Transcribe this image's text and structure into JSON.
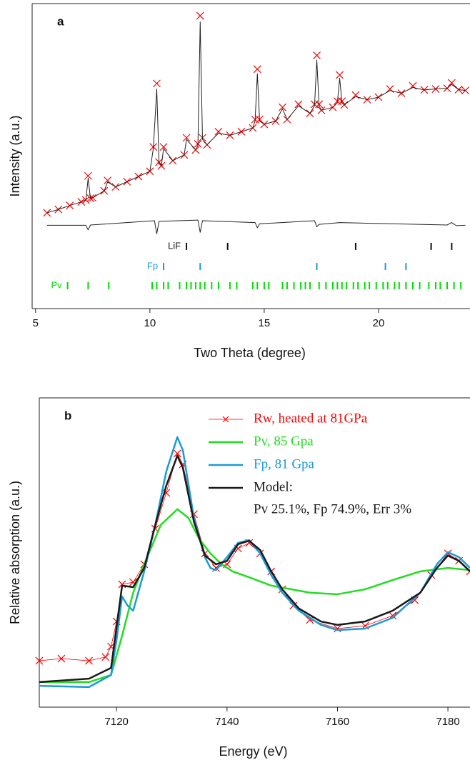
{
  "chart_data": [
    {
      "type": "line",
      "panel_label": "a",
      "x_label": "Two Theta (degree)",
      "y_label": "Intensity (a.u.)",
      "xlim": [
        4.85,
        24
      ],
      "xticks": [
        5,
        10,
        15,
        20
      ],
      "ylim": [
        0,
        100
      ],
      "x": [
        5.5,
        6,
        6.5,
        7,
        7.2,
        7.3,
        7.4,
        7.5,
        8,
        8.15,
        8.5,
        9,
        9.5,
        10,
        10.15,
        10.3,
        10.4,
        10.5,
        10.6,
        11,
        11.5,
        11.6,
        12,
        12.1,
        12.2,
        12.3,
        12.5,
        13,
        13.5,
        14,
        14.5,
        14.6,
        14.7,
        14.8,
        15,
        15.5,
        15.8,
        16,
        16.5,
        17,
        17.2,
        17.3,
        17.4,
        17.5,
        18,
        18.2,
        18.3,
        18.4,
        18.5,
        19,
        19.5,
        20,
        20.5,
        21,
        21.5,
        22,
        22.5,
        23,
        23.2,
        23.5,
        23.8
      ],
      "series": [
        {
          "color": "#ff0000",
          "marker": "x",
          "values": [
            31.4,
            32.5,
            33.8,
            35.0,
            35.6,
            43.5,
            36.2,
            36.3,
            38.6,
            42,
            39.9,
            41.6,
            43.3,
            45.0,
            53,
            73.8,
            48,
            46.8,
            53,
            48.5,
            50.4,
            56,
            52.0,
            54,
            96,
            56,
            53.7,
            58,
            56.8,
            58.0,
            59.2,
            62,
            78.5,
            62,
            60.4,
            61.5,
            66,
            62.0,
            67,
            64.0,
            67,
            83,
            67,
            65.0,
            66.0,
            68,
            76.6,
            68,
            66.8,
            70,
            68.5,
            69.3,
            72,
            70.6,
            73,
            71.7,
            72.0,
            72.2,
            74,
            71.8,
            71.5
          ]
        },
        {
          "color": "#222222",
          "values": [
            31.4,
            32.5,
            33.8,
            35.0,
            35.6,
            42.8,
            36.2,
            36.3,
            38.6,
            41.5,
            39.9,
            41.6,
            43.3,
            45.0,
            52.5,
            72,
            48,
            46.8,
            52.5,
            48.5,
            50.4,
            55.5,
            52.0,
            53.5,
            94,
            55.5,
            53.7,
            57.5,
            56.8,
            58.0,
            59.2,
            61.5,
            77,
            61.5,
            60.4,
            61.5,
            65.5,
            62.0,
            66.5,
            64.0,
            66.5,
            81.5,
            66.5,
            65.0,
            66.0,
            67.5,
            75.5,
            67.5,
            66.8,
            69.5,
            68.5,
            69.3,
            71.5,
            70.6,
            72.5,
            71.7,
            72.0,
            72.2,
            73.5,
            71.8,
            71.5
          ]
        },
        {
          "color": "#222222",
          "x": [
            5.5,
            7.2,
            7.3,
            7.4,
            10.2,
            10.3,
            10.4,
            12.1,
            12.2,
            12.3,
            14.6,
            14.7,
            14.8,
            17.2,
            17.3,
            17.4,
            18.3,
            23.0,
            23.2,
            23.4,
            23.8
          ],
          "values": [
            27.3,
            27.3,
            25.8,
            27.4,
            28.8,
            24.5,
            28.6,
            29.0,
            25.0,
            28.8,
            28.2,
            26.5,
            27.8,
            28.8,
            26.8,
            27.6,
            28.2,
            27.4,
            28.2,
            27.2,
            27.3
          ]
        }
      ],
      "reflections": [
        {
          "name": "LiF",
          "color": "#111111",
          "y": 20.4,
          "positions": [
            11.6,
            13.4,
            19.0,
            22.3,
            23.2
          ]
        },
        {
          "name": "Fp",
          "color": "#1a9bd7",
          "y": 13.8,
          "positions": [
            10.6,
            12.2,
            17.3,
            20.3,
            21.2
          ]
        },
        {
          "name": "Pv",
          "color": "#00dd00",
          "y": 7.5,
          "positions": [
            6.4,
            7.3,
            8.2,
            10.1,
            10.3,
            10.6,
            10.8,
            11.3,
            11.6,
            11.8,
            12.0,
            12.2,
            12.4,
            12.7,
            13.0,
            13.5,
            13.8,
            14.5,
            14.7,
            15.0,
            15.2,
            15.8,
            16.0,
            16.3,
            16.6,
            16.8,
            17.0,
            17.4,
            17.7,
            18.0,
            18.2,
            18.4,
            18.6,
            18.9,
            19.1,
            19.4,
            19.6,
            19.9,
            20.2,
            20.4,
            20.7,
            20.9,
            21.2,
            21.5,
            21.8,
            22.2,
            22.5,
            22.7,
            23.0,
            23.3,
            23.6
          ]
        }
      ]
    },
    {
      "type": "line",
      "panel_label": "b",
      "x_label": "Energy (eV)",
      "y_label": "Relative absorption (a.u.)",
      "xlim": [
        7106,
        7184
      ],
      "xticks": [
        7120,
        7140,
        7160,
        7180
      ],
      "ylim": [
        0,
        100
      ],
      "legend": "upper right",
      "annotation": "Pv 25.1%, Fp 74.9%, Err 3%",
      "series": [
        {
          "name": "Rw, heated at 81GPa",
          "color": "#ff0000",
          "marker": "x",
          "line_width": 0.8,
          "x": [
            7106,
            7110,
            7115,
            7118,
            7119,
            7120,
            7121,
            7123,
            7125,
            7127,
            7129,
            7131,
            7132,
            7134,
            7136,
            7138,
            7140,
            7142,
            7144,
            7146,
            7148,
            7150,
            7152,
            7155,
            7160,
            7165,
            7170,
            7174,
            7177,
            7180,
            7182,
            7184
          ],
          "values": [
            15.0,
            15.7,
            15.0,
            16.2,
            19.6,
            27.7,
            39.7,
            40.4,
            46.2,
            57.7,
            69.3,
            82,
            78.5,
            62.4,
            49.7,
            45,
            46.2,
            51.3,
            53.1,
            49.7,
            43.9,
            38.1,
            32.8,
            28.2,
            25.4,
            26.3,
            29.6,
            34.6,
            42.7,
            49.7,
            47.3,
            43.9
          ]
        },
        {
          "name": "Pv, 85 Gpa",
          "color": "#22dd22",
          "line_width": 2.5,
          "x": [
            7106,
            7115,
            7119,
            7121,
            7123,
            7125,
            7128,
            7131,
            7133,
            7135,
            7137,
            7139,
            7141,
            7144,
            7148,
            7155,
            7160,
            7165,
            7170,
            7175,
            7180,
            7184
          ],
          "values": [
            8.1,
            8.1,
            10.4,
            23.1,
            37,
            46.2,
            58.9,
            64,
            61.2,
            54.3,
            49.7,
            46.2,
            43.9,
            42,
            39.3,
            37,
            36.5,
            38.1,
            41.1,
            43.9,
            45,
            44.3
          ]
        },
        {
          "name": "Fp, 81 Gpa",
          "color": "#1a9bd7",
          "line_width": 2.5,
          "x": [
            7106,
            7115,
            7119,
            7120,
            7121,
            7122,
            7123,
            7125,
            7127,
            7129,
            7131,
            7132,
            7134,
            7136,
            7137,
            7138,
            7140,
            7142,
            7144,
            7146,
            7148,
            7150,
            7153,
            7157,
            7160,
            7165,
            7170,
            7175,
            7178,
            7180,
            7182,
            7184
          ],
          "values": [
            6.9,
            6.5,
            10.4,
            21.9,
            35.8,
            32.8,
            31.2,
            43.9,
            58.9,
            76.2,
            87.3,
            83.1,
            61.2,
            48.5,
            45,
            44.3,
            48.5,
            53.1,
            54,
            49.7,
            42.7,
            37,
            31.2,
            26.6,
            24.9,
            25.4,
            28.9,
            37,
            46.2,
            50.1,
            48.5,
            45
          ]
        },
        {
          "name": "Model:",
          "color": "#1a1a1a",
          "line_width": 2.5,
          "x": [
            7106,
            7115,
            7119,
            7121,
            7123,
            7125,
            7127,
            7129,
            7131,
            7132,
            7134,
            7136,
            7138,
            7140,
            7142,
            7144,
            7146,
            7148,
            7150,
            7153,
            7157,
            7160,
            7165,
            7170,
            7175,
            7178,
            7180,
            7182,
            7184
          ],
          "values": [
            8.1,
            9.2,
            12.7,
            39.3,
            38.8,
            45,
            58.9,
            71.6,
            81.3,
            77.4,
            60,
            49,
            46.2,
            47.3,
            52.7,
            53.8,
            50.8,
            43.9,
            38.1,
            31.9,
            27.7,
            26.6,
            27.7,
            31.2,
            37,
            45,
            49,
            47.3,
            43.9
          ]
        }
      ]
    }
  ]
}
